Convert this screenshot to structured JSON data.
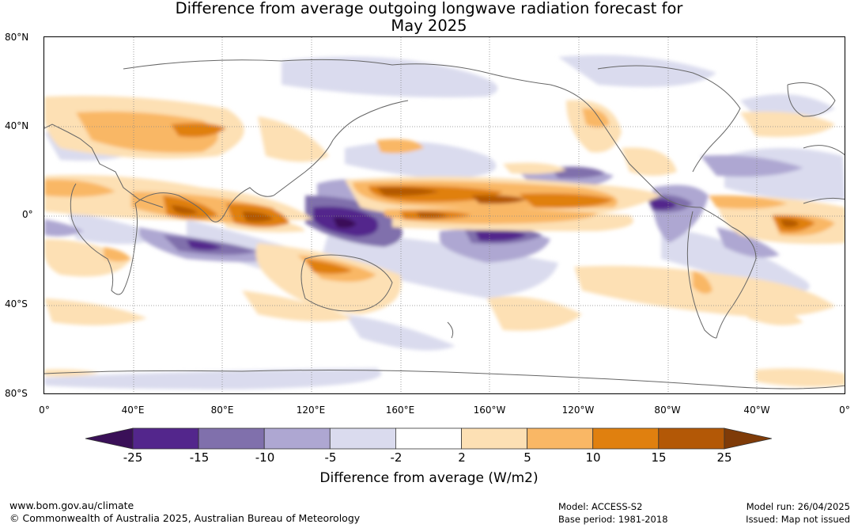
{
  "title": {
    "line1": "Difference from average outgoing longwave radiation forecast for",
    "line2": "May 2025"
  },
  "map": {
    "lat_labels": [
      "80°N",
      "40°N",
      "0°",
      "40°S",
      "80°S"
    ],
    "lon_labels": [
      "0°",
      "40°E",
      "80°E",
      "120°E",
      "160°E",
      "160°W",
      "120°W",
      "80°W",
      "40°W",
      "0°"
    ]
  },
  "colorbar": {
    "ticks": [
      "-25",
      "-15",
      "-10",
      "-5",
      "-2",
      "2",
      "5",
      "10",
      "15",
      "25"
    ],
    "colors": [
      "#3a1058",
      "#53268c",
      "#8070ac",
      "#aea7d2",
      "#dadbee",
      "#ffffff",
      "#fde0b4",
      "#f9b765",
      "#e0800f",
      "#b35806",
      "#7f3b08"
    ],
    "label": "Difference from average (W/m2)"
  },
  "footer": {
    "website": "www.bom.gov.au/climate",
    "copyright": "© Commonwealth of Australia 2025, Australian Bureau of Meteorology",
    "model": "Model: ACCESS-S2",
    "base_period": "Base period: 1981-2018",
    "model_run": "Model run: 26/04/2025",
    "issued": "Issued: Map not issued"
  }
}
